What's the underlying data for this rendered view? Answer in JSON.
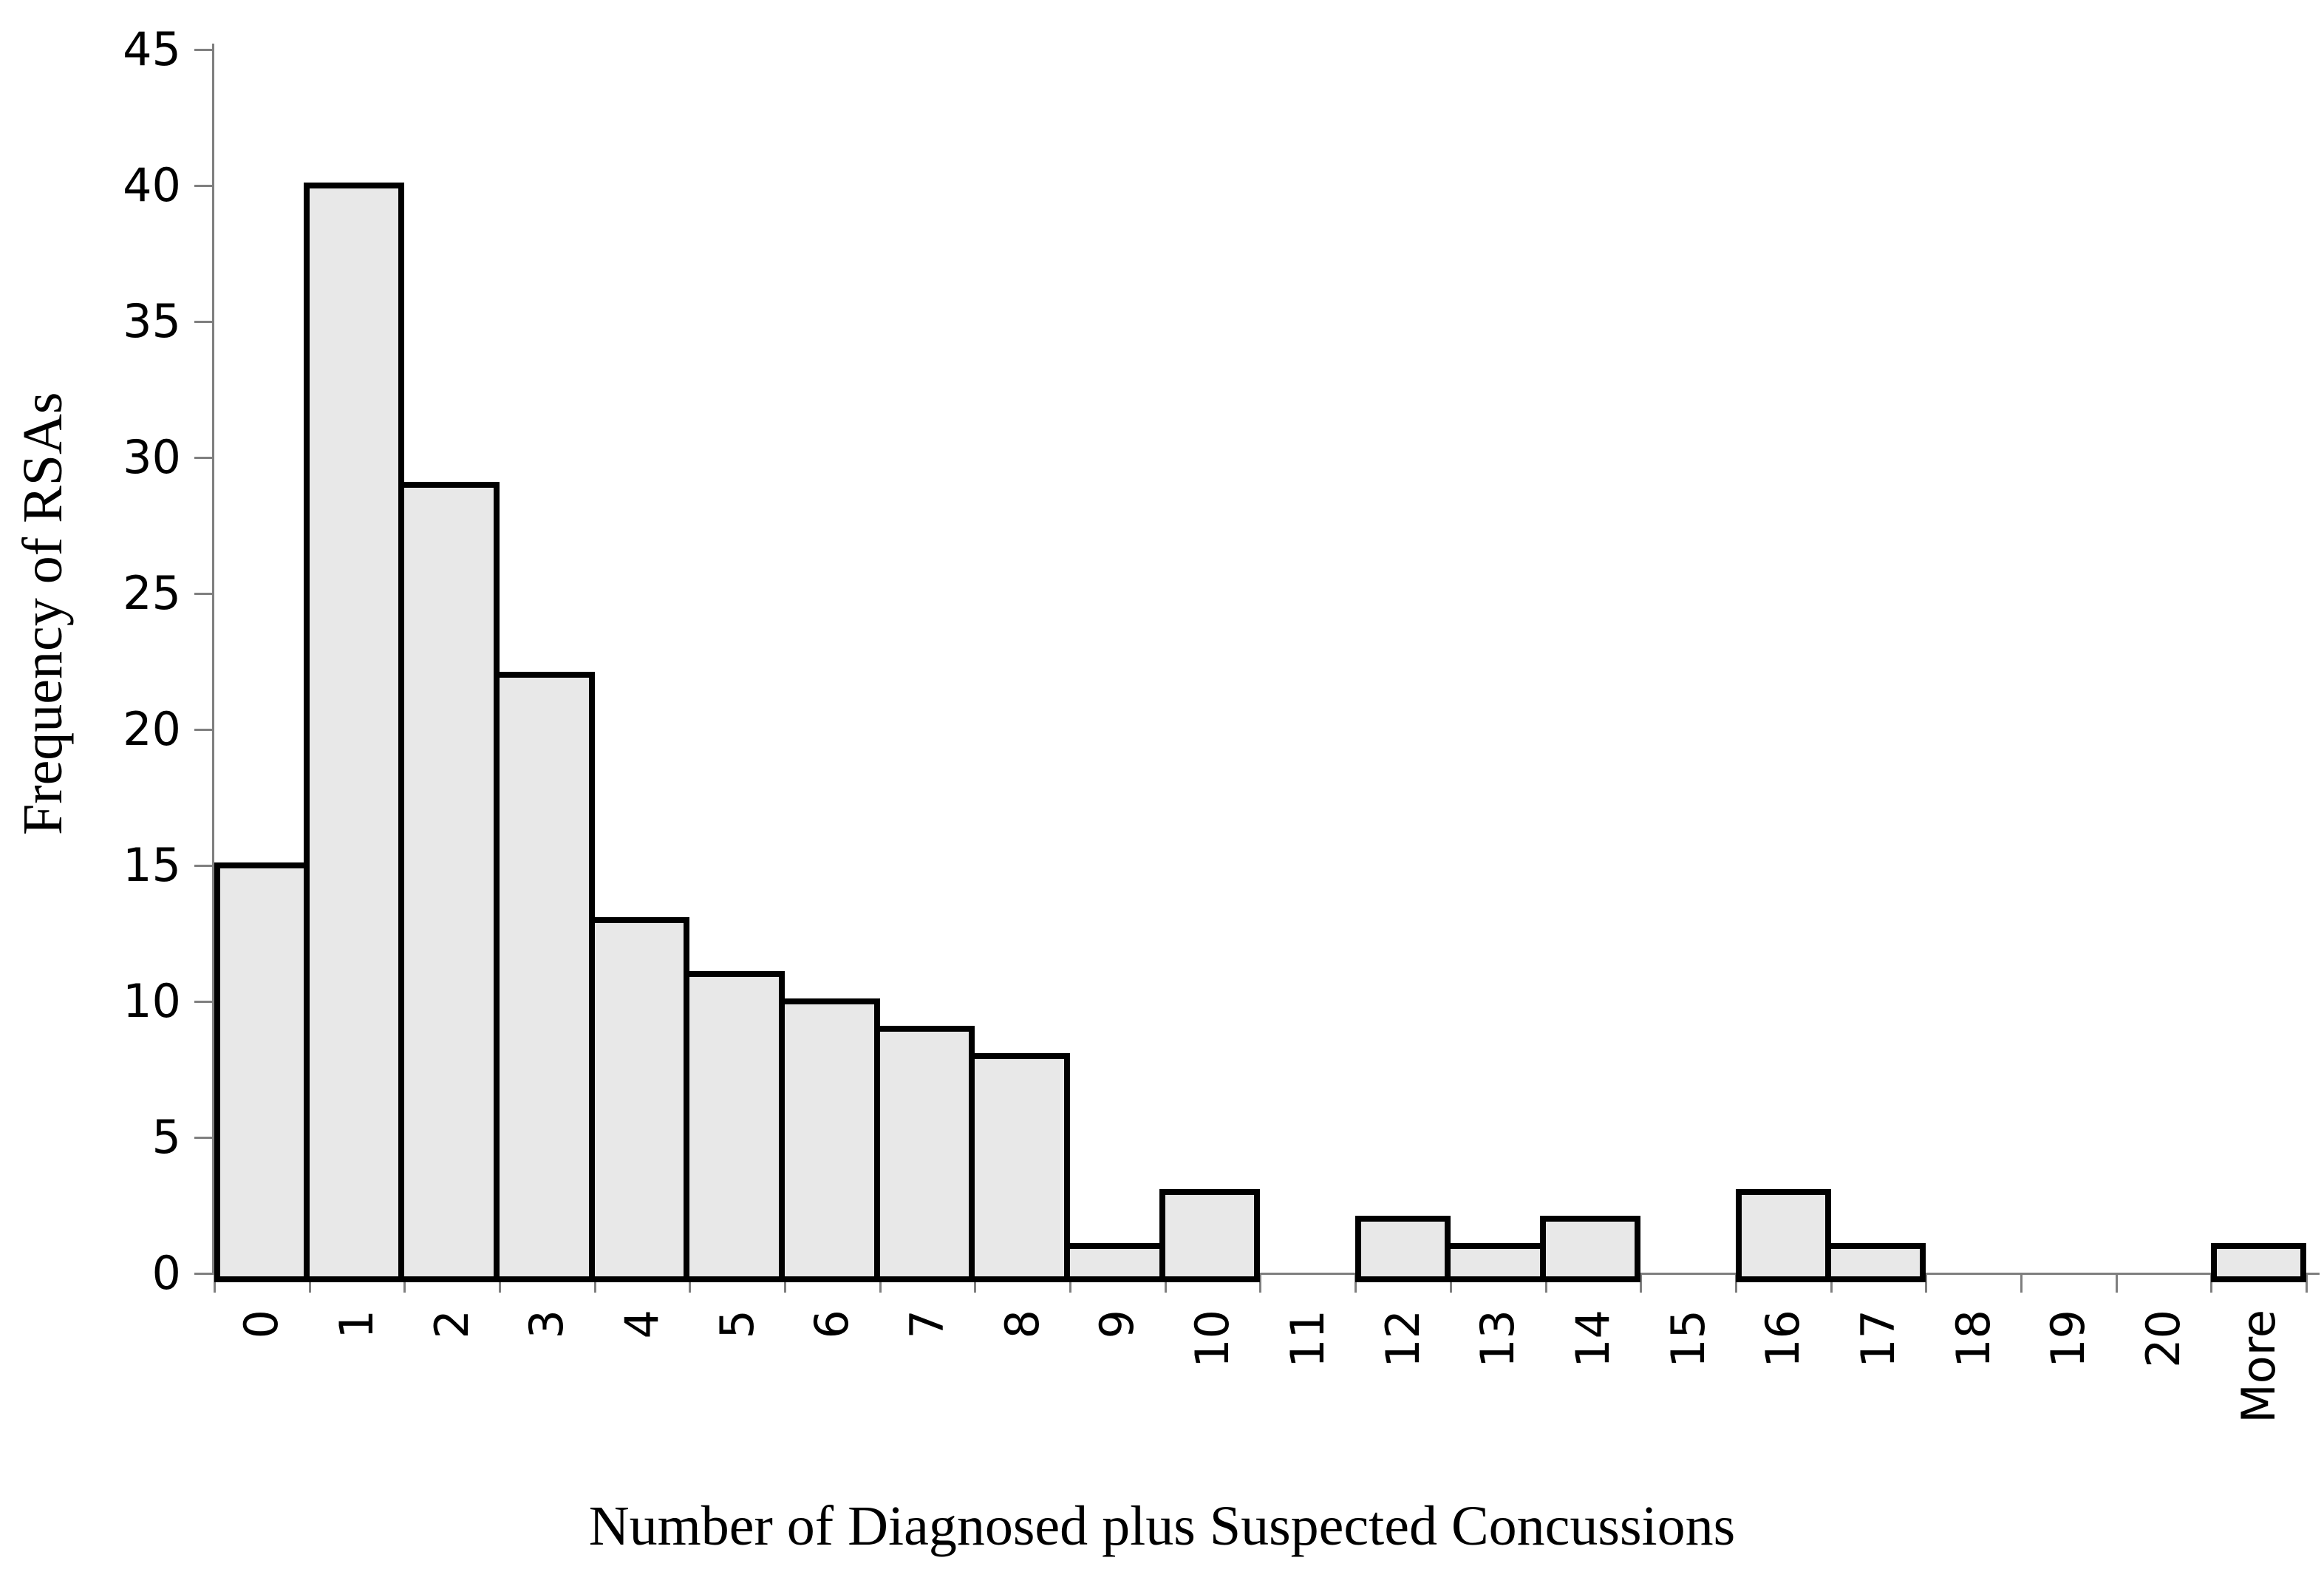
{
  "figure": {
    "background_color": "#FFFFFF"
  },
  "y_axis": {
    "title": "Frequency of RSAs",
    "min": 0,
    "max": 45,
    "tick_step": 5,
    "tick_labels": [
      "0",
      "5",
      "10",
      "15",
      "20",
      "25",
      "30",
      "35",
      "40",
      "45"
    ]
  },
  "x_axis": {
    "title": "Number of Diagnosed plus Suspected Concussions"
  },
  "chart_data": {
    "type": "bar",
    "title": "",
    "xlabel": "Number of Diagnosed plus Suspected Concussions",
    "ylabel": "Frequency of RSAs",
    "categories": [
      "0",
      "1",
      "2",
      "3",
      "4",
      "5",
      "6",
      "7",
      "8",
      "9",
      "10",
      "11",
      "12",
      "13",
      "14",
      "15",
      "16",
      "17",
      "18",
      "19",
      "20",
      "More"
    ],
    "values": [
      15,
      40,
      29,
      22,
      13,
      11,
      10,
      9,
      8,
      1,
      3,
      0,
      2,
      1,
      2,
      0,
      3,
      1,
      0,
      0,
      0,
      1
    ],
    "ylim": [
      0,
      45
    ],
    "y_tick_step": 5,
    "grid": false,
    "legend": "none",
    "bar_fill_color": "#E8E8E8",
    "bar_border_color": "#000000",
    "axis_color": "#7F7F7F",
    "text_color": "#000000"
  }
}
